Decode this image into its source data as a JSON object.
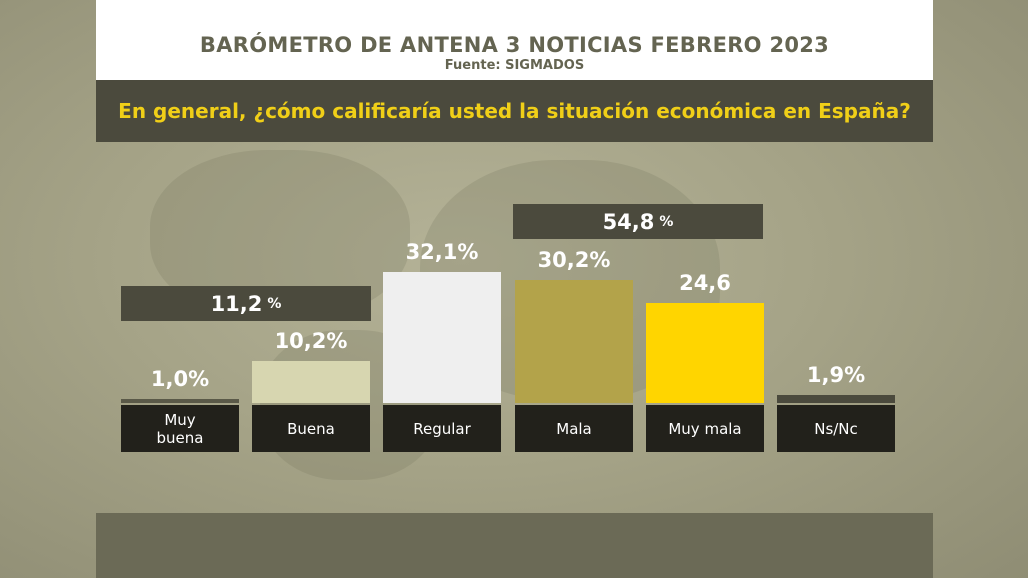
{
  "header": {
    "title": "BARÓMETRO DE ANTENA 3 NOTICIAS FEBRERO 2023",
    "source": "Fuente: SIGMADOS"
  },
  "question": "En general, ¿cómo calificaría usted la situación económica en España?",
  "groups": [
    {
      "value": "11,2",
      "unit": "%"
    },
    {
      "value": "54,8",
      "unit": "%"
    }
  ],
  "chart_data": {
    "type": "bar",
    "categories": [
      "Muy\nbuena",
      "Buena",
      "Regular",
      "Mala",
      "Muy mala",
      "Ns/Nc"
    ],
    "values": [
      1.0,
      10.2,
      32.1,
      30.2,
      24.6,
      1.9
    ],
    "value_labels": [
      "1,0%",
      "10,2%",
      "32,1%",
      "30,2%",
      "24,6",
      "1,9%"
    ],
    "colors": [
      "#5a5948",
      "#d7d6b0",
      "#efefef",
      "#b3a34a",
      "#ffd500",
      "#4b4a3d"
    ],
    "ylim": [
      0,
      35
    ]
  }
}
